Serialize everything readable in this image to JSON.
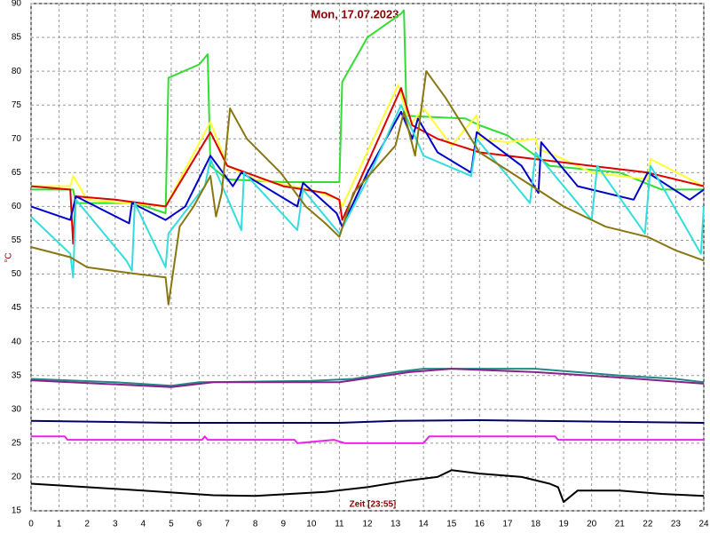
{
  "chart_data": {
    "type": "line",
    "title": "Mon, 17.07.2023",
    "y_label": "°C",
    "x_label": "Zeit [23:55]",
    "xlim": [
      0,
      24
    ],
    "ylim": [
      15,
      90
    ],
    "xticks": [
      0,
      1,
      2,
      3,
      4,
      5,
      6,
      7,
      8,
      9,
      10,
      11,
      12,
      13,
      14,
      15,
      16,
      17,
      18,
      19,
      20,
      21,
      22,
      23,
      24
    ],
    "yticks": [
      15,
      20,
      25,
      30,
      35,
      40,
      45,
      50,
      55,
      60,
      65,
      70,
      75,
      80,
      85,
      90
    ],
    "grid": true,
    "series": [
      {
        "color": "#33dd33",
        "x": [
          0,
          1.5,
          1.6,
          3.7,
          4.8,
          4.9,
          6,
          6.3,
          6.4,
          7,
          9,
          11,
          11.1,
          12,
          13.2,
          13.3,
          13.4,
          15.5,
          16,
          17,
          18.5,
          21,
          22.5,
          24
        ],
        "values": [
          62.5,
          62.5,
          60.5,
          60.5,
          59,
          79,
          81,
          82.5,
          66,
          64,
          63.6,
          63.6,
          78.4,
          85,
          88.5,
          89,
          73.4,
          73,
          72,
          70.5,
          66,
          65,
          62.5,
          62.5
        ]
      },
      {
        "color": "#ffff33",
        "x": [
          0,
          1.4,
          1.5,
          2,
          4.8,
          6.4,
          7,
          8,
          10,
          11,
          11.1,
          13.1,
          13.5,
          14,
          15,
          15.9,
          16,
          17,
          18,
          18.1,
          19,
          20,
          22,
          22.1,
          24
        ],
        "values": [
          63,
          63,
          64.5,
          61,
          60,
          72.5,
          66,
          64,
          62.5,
          61,
          60,
          78,
          72,
          74.5,
          69,
          73.5,
          70,
          69.5,
          70,
          68.5,
          67,
          65,
          64,
          67,
          63
        ]
      },
      {
        "color": "#dd0000",
        "x": [
          0,
          1.4,
          1.5,
          1.6,
          3,
          4.8,
          6.4,
          7,
          9,
          10.5,
          11,
          11.1,
          13.2,
          13.6,
          14.5,
          16,
          18,
          20,
          22,
          24
        ],
        "values": [
          63,
          62.5,
          54.5,
          61.5,
          61,
          60,
          71,
          66,
          63,
          62,
          61,
          58,
          77.5,
          72,
          70,
          68,
          67,
          66,
          65,
          63
        ]
      },
      {
        "color": "#0000cc",
        "x": [
          0,
          1.4,
          1.6,
          3.5,
          3.6,
          4.8,
          5.5,
          6.4,
          7.2,
          7.5,
          9.5,
          9.7,
          10.9,
          11.1,
          12,
          13.2,
          13.6,
          13.8,
          14.5,
          15.7,
          15.9,
          17.5,
          18.1,
          18.2,
          19.5,
          21.5,
          22,
          23.5,
          24
        ],
        "values": [
          60,
          58,
          61.5,
          57.5,
          60.5,
          58,
          60,
          67.5,
          63,
          65,
          60,
          63.5,
          59,
          57,
          65,
          74,
          70,
          73,
          68,
          65,
          71,
          66,
          62,
          69.5,
          63,
          61,
          65,
          61,
          62.5
        ]
      },
      {
        "color": "#33dddd",
        "x": [
          0,
          1.4,
          1.5,
          1.6,
          3.4,
          3.6,
          3.7,
          4.8,
          4.9,
          6.2,
          6.4,
          7.5,
          7.6,
          9.5,
          9.7,
          11,
          12,
          13.2,
          14,
          15.7,
          15.9,
          17.8,
          18,
          20,
          20.2,
          21.9,
          22.1,
          23.9,
          24
        ],
        "values": [
          58.5,
          53,
          49.5,
          61,
          52,
          50.5,
          60.5,
          51,
          56,
          63,
          67,
          56.5,
          65,
          56.5,
          62.5,
          56,
          64,
          75,
          67.5,
          64.5,
          70,
          60.5,
          68,
          58,
          66,
          56,
          66,
          53,
          60
        ]
      },
      {
        "color": "#887711",
        "x": [
          0,
          1.4,
          2,
          3.8,
          4.8,
          4.9,
          5.3,
          5.8,
          6.4,
          6.6,
          6.8,
          7.1,
          7.7,
          8.9,
          9.8,
          10.5,
          11,
          11.5,
          13,
          13.3,
          13.7,
          14.1,
          14.8,
          16,
          17.5,
          19,
          20.5,
          22,
          23,
          24
        ],
        "values": [
          54,
          52.5,
          51,
          50,
          49.5,
          45.5,
          57,
          60,
          64.5,
          58.5,
          62,
          74.5,
          70,
          65,
          60,
          57.5,
          55.5,
          62,
          69,
          74,
          67.5,
          80,
          76,
          68,
          64,
          60,
          57,
          55.5,
          53.5,
          52
        ]
      },
      {
        "color": "#228888",
        "x": [
          0,
          3,
          5,
          6,
          10,
          11.5,
          13,
          14,
          18,
          21,
          23,
          24
        ],
        "values": [
          34.5,
          34,
          33.5,
          34,
          34.2,
          34.5,
          35.5,
          36,
          36,
          35,
          34.5,
          34
        ]
      },
      {
        "color": "#882288",
        "x": [
          0,
          5,
          6.5,
          11,
          13.5,
          15,
          18,
          21,
          24
        ],
        "values": [
          34.3,
          33.3,
          34,
          34,
          35.5,
          36,
          35.5,
          34.7,
          33.8
        ]
      },
      {
        "color": "#000066",
        "x": [
          0,
          5,
          11,
          13,
          16,
          20,
          24
        ],
        "values": [
          28.3,
          28,
          28,
          28.3,
          28.4,
          28.2,
          28
        ]
      },
      {
        "color": "#ee22ee",
        "x": [
          0,
          1.2,
          1.3,
          6.1,
          6.2,
          6.3,
          9.4,
          9.5,
          10.8,
          11.2,
          14,
          14.2,
          18.7,
          18.8,
          24
        ],
        "values": [
          26,
          26,
          25.5,
          25.5,
          26,
          25.5,
          25.5,
          25,
          25.5,
          25,
          25,
          26,
          26,
          25.5,
          25.5
        ]
      },
      {
        "color": "#000000",
        "x": [
          0,
          2,
          4,
          6.5,
          8,
          10.5,
          12,
          13.5,
          14.5,
          15,
          16,
          17.5,
          18.5,
          18.8,
          19,
          19.5,
          21,
          22.5,
          24
        ],
        "values": [
          19,
          18.5,
          18,
          17.3,
          17.2,
          17.8,
          18.5,
          19.5,
          20,
          21,
          20.5,
          20,
          19,
          18.5,
          16.3,
          18,
          18,
          17.5,
          17.2
        ]
      }
    ]
  }
}
